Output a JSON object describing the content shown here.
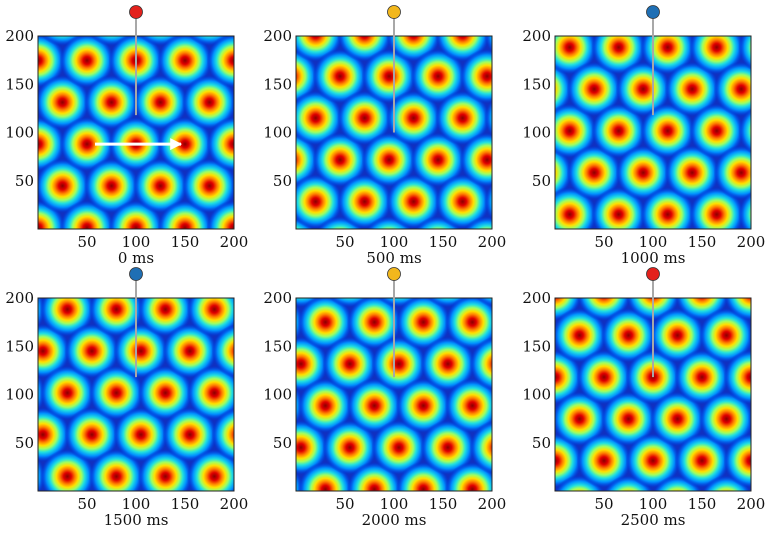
{
  "chart_data": [
    {
      "type": "heatmap",
      "caption": "0 ms",
      "xlim": [
        0,
        200
      ],
      "ylim": [
        0,
        200
      ],
      "xticks": [
        "50",
        "100",
        "150",
        "200"
      ],
      "yticks": [
        "50",
        "100",
        "150",
        "200"
      ],
      "colormap": "jet",
      "lattice_spacing": 50,
      "peak_centers": [
        [
          50,
          88
        ],
        [
          150,
          88
        ],
        [
          100,
          118
        ],
        [
          100,
          58
        ],
        [
          75,
          145
        ],
        [
          125,
          145
        ],
        [
          25,
          175
        ],
        [
          175,
          175
        ]
      ],
      "probe": {
        "x": 100,
        "y": 118,
        "color": "#e3211c"
      },
      "arrow": {
        "from": [
          50,
          88
        ],
        "to": [
          150,
          88
        ],
        "color": "#ffffff"
      }
    },
    {
      "type": "heatmap",
      "caption": "500 ms",
      "xlim": [
        0,
        200
      ],
      "ylim": [
        0,
        200
      ],
      "xticks": [
        "50",
        "100",
        "150",
        "200"
      ],
      "yticks": [
        "50",
        "100",
        "150",
        "200"
      ],
      "colormap": "jet",
      "lattice_spacing": 50,
      "peak_centers": [
        [
          120,
          115
        ],
        [
          70,
          115
        ],
        [
          95,
          145
        ],
        [
          45,
          145
        ],
        [
          95,
          85
        ],
        [
          120,
          175
        ],
        [
          70,
          175
        ]
      ],
      "probe": {
        "x": 100,
        "y": 100,
        "color": "#f2b71c"
      }
    },
    {
      "type": "heatmap",
      "caption": "1000 ms",
      "xlim": [
        0,
        200
      ],
      "ylim": [
        0,
        200
      ],
      "xticks": [
        "50",
        "100",
        "150",
        "200"
      ],
      "yticks": [
        "50",
        "100",
        "150",
        "200"
      ],
      "colormap": "jet",
      "lattice_spacing": 50,
      "peak_centers": [
        [
          90,
          145
        ],
        [
          140,
          145
        ],
        [
          65,
          115
        ],
        [
          115,
          115
        ],
        [
          90,
          85
        ],
        [
          65,
          175
        ],
        [
          115,
          175
        ]
      ],
      "probe": {
        "x": 100,
        "y": 118,
        "color": "#1f6fb4"
      }
    },
    {
      "type": "heatmap",
      "caption": "1500 ms",
      "xlim": [
        0,
        200
      ],
      "ylim": [
        0,
        200
      ],
      "xticks": [
        "50",
        "100",
        "150",
        "200"
      ],
      "yticks": [
        "50",
        "100",
        "150",
        "200"
      ],
      "colormap": "jet",
      "lattice_spacing": 50,
      "peak_centers": [
        [
          105,
          145
        ],
        [
          55,
          145
        ],
        [
          80,
          115
        ],
        [
          130,
          115
        ],
        [
          105,
          85
        ],
        [
          55,
          175
        ],
        [
          155,
          175
        ]
      ],
      "probe": {
        "x": 100,
        "y": 118,
        "color": "#1f6fb4"
      }
    },
    {
      "type": "heatmap",
      "caption": "2000 ms",
      "xlim": [
        0,
        200
      ],
      "ylim": [
        0,
        200
      ],
      "xticks": [
        "50",
        "100",
        "150",
        "200"
      ],
      "yticks": [
        "50",
        "100",
        "150",
        "200"
      ],
      "colormap": "jet",
      "lattice_spacing": 50,
      "peak_centers": [
        [
          80,
          175
        ],
        [
          130,
          175
        ],
        [
          55,
          145
        ],
        [
          105,
          145
        ],
        [
          80,
          115
        ],
        [
          130,
          115
        ],
        [
          105,
          85
        ]
      ],
      "probe": {
        "x": 100,
        "y": 118,
        "color": "#f2b71c"
      }
    },
    {
      "type": "heatmap",
      "caption": "2500 ms",
      "xlim": [
        0,
        200
      ],
      "ylim": [
        0,
        200
      ],
      "xticks": [
        "50",
        "100",
        "150",
        "200"
      ],
      "yticks": [
        "50",
        "100",
        "150",
        "200"
      ],
      "colormap": "jet",
      "lattice_spacing": 50,
      "peak_centers": [
        [
          100,
          118
        ],
        [
          50,
          118
        ],
        [
          150,
          118
        ],
        [
          75,
          148
        ],
        [
          125,
          148
        ],
        [
          75,
          88
        ],
        [
          125,
          88
        ],
        [
          100,
          178
        ]
      ],
      "probe": {
        "x": 100,
        "y": 118,
        "color": "#e3211c"
      }
    }
  ]
}
